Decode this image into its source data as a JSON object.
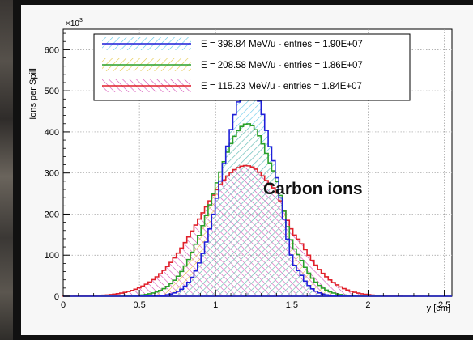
{
  "chart_data": {
    "type": "histogram",
    "xlabel": "y [cm]",
    "ylabel": "Ions per Spill",
    "y_multiplier": "×10",
    "y_multiplier_exp": "3",
    "xlim": [
      0,
      2.55
    ],
    "ylim": [
      0,
      650
    ],
    "x_ticks": [
      0,
      0.5,
      1,
      1.5,
      2,
      2.5
    ],
    "x_tick_labels": [
      "0",
      "0.5",
      "1",
      "1.5",
      "2",
      "2.5"
    ],
    "y_ticks": [
      0,
      100,
      200,
      300,
      400,
      500,
      600
    ],
    "y_tick_labels": [
      "0",
      "100",
      "200",
      "300",
      "400",
      "500",
      "600"
    ],
    "grid": true,
    "legend_position": "top-center",
    "annotation": "Carbon ions",
    "series": [
      {
        "name": "E = 398.84 MeV/u - entries = 1.90E+07",
        "color": "#1f1fd9",
        "hatch_color": "#5fc7e8",
        "center": 1.22,
        "peak": 518,
        "sigma_left": 0.17,
        "sigma_right": 0.16
      },
      {
        "name": "E = 208.58 MeV/u - entries = 1.86E+07",
        "color": "#2aa02a",
        "hatch_color": "#e6c84a",
        "center": 1.21,
        "peak": 420,
        "sigma_left": 0.22,
        "sigma_right": 0.2
      },
      {
        "name": "E = 115.23 MeV/u - entries = 1.84E+07",
        "color": "#e0202a",
        "hatch_color": "#d64fb5",
        "center": 1.2,
        "peak": 318,
        "sigma_left": 0.3,
        "sigma_right": 0.27
      }
    ]
  }
}
